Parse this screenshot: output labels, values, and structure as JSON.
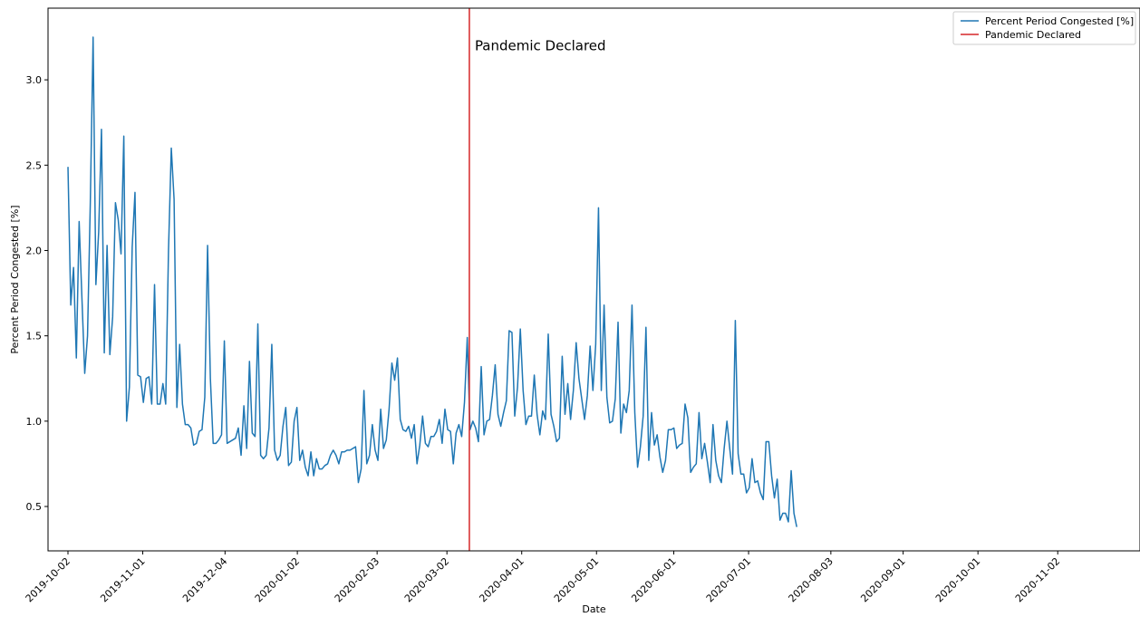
{
  "chart_data": {
    "type": "line",
    "title": "",
    "xlabel": "Date",
    "ylabel": "Percent Period Congested [%]",
    "ylim": [
      0.24,
      3.42
    ],
    "xlim": [
      "2019-09-24",
      "2020-12-05"
    ],
    "grid": false,
    "legend_position": "top-right",
    "x_ticks": [
      "2019-10-02",
      "2019-11-01",
      "2019-12-04",
      "2020-01-02",
      "2020-02-03",
      "2020-03-02",
      "2020-04-01",
      "2020-05-01",
      "2020-06-01",
      "2020-07-01",
      "2020-08-03",
      "2020-09-01",
      "2020-10-01",
      "2020-11-02"
    ],
    "y_ticks": [
      "0.5",
      "1.0",
      "1.5",
      "2.0",
      "2.5",
      "3.0"
    ],
    "series": [
      {
        "name": "Percent Period Congested [%]",
        "color": "#1f77b4",
        "start_date": "2019-10-02",
        "x_step_days": 1.12,
        "values": [
          2.49,
          1.68,
          1.9,
          1.37,
          2.17,
          1.72,
          1.28,
          1.5,
          2.28,
          3.25,
          1.8,
          2.11,
          2.71,
          1.4,
          2.03,
          1.39,
          1.61,
          2.28,
          2.18,
          1.98,
          2.67,
          1.0,
          1.2,
          2.02,
          2.34,
          1.27,
          1.26,
          1.11,
          1.25,
          1.26,
          1.1,
          1.8,
          1.1,
          1.1,
          1.22,
          1.1,
          2.0,
          2.6,
          2.3,
          1.08,
          1.45,
          1.1,
          0.98,
          0.98,
          0.96,
          0.86,
          0.87,
          0.94,
          0.95,
          1.14,
          2.03,
          1.25,
          0.87,
          0.87,
          0.89,
          0.92,
          1.47,
          0.87,
          0.88,
          0.89,
          0.9,
          0.96,
          0.8,
          1.09,
          0.84,
          1.35,
          0.93,
          0.91,
          1.57,
          0.8,
          0.78,
          0.8,
          0.96,
          1.45,
          0.83,
          0.77,
          0.8,
          0.97,
          1.08,
          0.74,
          0.76,
          1.0,
          1.08,
          0.77,
          0.83,
          0.73,
          0.68,
          0.82,
          0.68,
          0.78,
          0.72,
          0.72,
          0.74,
          0.75,
          0.8,
          0.83,
          0.8,
          0.75,
          0.82,
          0.82,
          0.83,
          0.83,
          0.84,
          0.85,
          0.64,
          0.72,
          1.18,
          0.75,
          0.8,
          0.98,
          0.83,
          0.77,
          1.07,
          0.84,
          0.89,
          1.07,
          1.34,
          1.24,
          1.37,
          1.01,
          0.95,
          0.94,
          0.97,
          0.9,
          0.98,
          0.75,
          0.86,
          1.03,
          0.87,
          0.85,
          0.91,
          0.91,
          0.94,
          1.01,
          0.87,
          1.07,
          0.95,
          0.94,
          0.75,
          0.93,
          0.98,
          0.91,
          1.11,
          1.49,
          0.95,
          1.0,
          0.96,
          0.88,
          1.32,
          0.92,
          1.0,
          1.01,
          1.15,
          1.33,
          1.04,
          0.97,
          1.05,
          1.12,
          1.53,
          1.52,
          1.03,
          1.2,
          1.54,
          1.18,
          0.98,
          1.03,
          1.03,
          1.27,
          1.04,
          0.92,
          1.06,
          1.01,
          1.51,
          1.04,
          0.97,
          0.88,
          0.9,
          1.38,
          1.04,
          1.22,
          1.01,
          1.18,
          1.46,
          1.25,
          1.13,
          1.01,
          1.15,
          1.44,
          1.18,
          1.45,
          2.25,
          1.18,
          1.68,
          1.14,
          0.99,
          1.0,
          1.13,
          1.58,
          0.93,
          1.1,
          1.05,
          1.18,
          1.68,
          1.05,
          0.73,
          0.85,
          1.03,
          1.55,
          0.77,
          1.05,
          0.86,
          0.92,
          0.79,
          0.7,
          0.77,
          0.95,
          0.95,
          0.96,
          0.84,
          0.86,
          0.87,
          1.1,
          1.02,
          0.7,
          0.73,
          0.75,
          1.05,
          0.78,
          0.87,
          0.76,
          0.64,
          0.98,
          0.77,
          0.68,
          0.64,
          0.84,
          1.0,
          0.84,
          0.69,
          1.59,
          0.81,
          0.69,
          0.69,
          0.58,
          0.61,
          0.78,
          0.64,
          0.65,
          0.58,
          0.54,
          0.88,
          0.88,
          0.68,
          0.55,
          0.66,
          0.42,
          0.46,
          0.46,
          0.41,
          0.71,
          0.46,
          0.38
        ]
      },
      {
        "name": "Pandemic Declared",
        "color": "#d62728",
        "vline_date": "2020-03-11"
      }
    ],
    "annotations": [
      {
        "text": "Pandemic Declared",
        "x": "2020-03-11",
        "y": 3.2
      }
    ]
  }
}
